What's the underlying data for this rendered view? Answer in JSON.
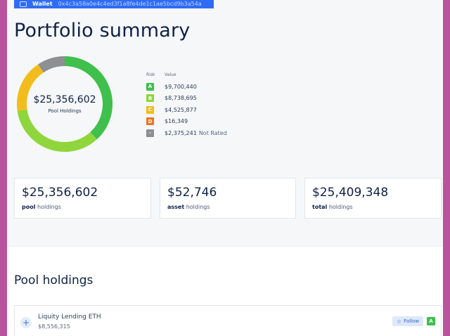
{
  "wallet": {
    "label": "Wallet",
    "address": "0x4c3a58a0e4c4ed3f1a8fe4de1c1ae5bcd9b3a54a"
  },
  "page": {
    "title": "Portfolio summary"
  },
  "donut": {
    "total": "$25,356,602",
    "subtitle": "Pool Holdings",
    "segments": [
      {
        "risk": "A",
        "amount": 9700440,
        "color": "#3fbf4b"
      },
      {
        "risk": "B",
        "amount": 8738695,
        "color": "#8fd63c"
      },
      {
        "risk": "C",
        "amount": 4525877,
        "color": "#f2bd1c"
      },
      {
        "risk": "D",
        "amount": 16349,
        "color": "#ec7422"
      },
      {
        "risk": "-",
        "amount": 2375241,
        "color": "#8c8f93"
      }
    ]
  },
  "legend": {
    "risk_header": "Risk",
    "value_header": "Value",
    "items": [
      {
        "badge": "A",
        "value": "$9,700,440",
        "note": "",
        "color": "#3fbf4b"
      },
      {
        "badge": "B",
        "value": "$8,738,695",
        "note": "",
        "color": "#8fd63c"
      },
      {
        "badge": "C",
        "value": "$4,525,877",
        "note": "",
        "color": "#f2bd1c"
      },
      {
        "badge": "D",
        "value": "$16,349",
        "note": "",
        "color": "#ec7422"
      },
      {
        "badge": "-",
        "value": "$2,375,241",
        "note": "Not Rated",
        "color": "#8c8f93"
      }
    ]
  },
  "cards": [
    {
      "amount": "$25,356,602",
      "label_strong": "pool",
      "label_rest": " holdings"
    },
    {
      "amount": "$52,746",
      "label_strong": "asset",
      "label_rest": " holdings"
    },
    {
      "amount": "$25,409,348",
      "label_strong": "total",
      "label_rest": " holdings"
    }
  ],
  "pool_holdings": {
    "title": "Pool holdings",
    "rows": [
      {
        "expand": "+",
        "name": "Liquity Lending ETH",
        "amount": "$8,556,315",
        "follow_label": "Follow",
        "follow_icon": "star-icon",
        "risk": "A"
      }
    ]
  }
}
